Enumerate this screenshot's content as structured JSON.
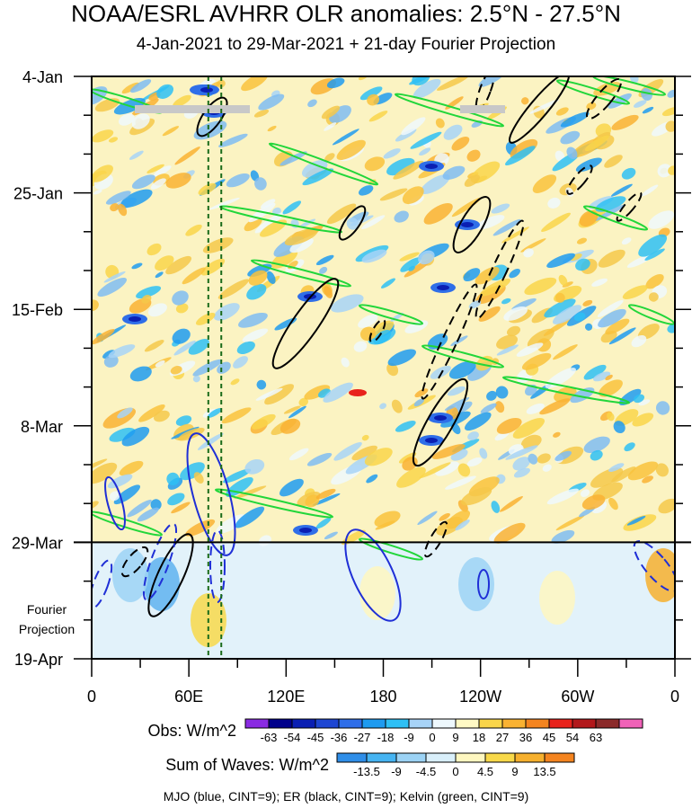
{
  "chart_data": {
    "type": "heatmap",
    "title": "NOAA/ESRL AVHRR OLR anomalies: 2.5°N - 27.5°N",
    "subtitle": "4-Jan-2021 to 29-Mar-2021 + 21-day Fourier Projection",
    "x_axis": {
      "ticks": [
        {
          "lon": 0,
          "label": "0"
        },
        {
          "lon": 60,
          "label": "60E"
        },
        {
          "lon": 120,
          "label": "120E"
        },
        {
          "lon": 180,
          "label": "180"
        },
        {
          "lon": 240,
          "label": "120W"
        },
        {
          "lon": 300,
          "label": "60W"
        },
        {
          "lon": 360,
          "label": "0"
        }
      ],
      "range": [
        0,
        360
      ]
    },
    "y_axis": {
      "ticks": [
        {
          "day": 0,
          "label": "4-Jan"
        },
        {
          "day": 21,
          "label": "25-Jan"
        },
        {
          "day": 42,
          "label": "15-Feb"
        },
        {
          "day": 63,
          "label": "8-Mar"
        },
        {
          "day": 84,
          "label": "29-Mar"
        },
        {
          "day": 105,
          "label": "19-Apr"
        }
      ],
      "range": [
        0,
        105
      ],
      "observation_end_day": 84
    },
    "projection_label": [
      "Fourier",
      "Projection"
    ],
    "colorbars": {
      "obs": {
        "label": "Obs: W/m^2",
        "levels": [
          "-63",
          "-54",
          "-45",
          "-36",
          "-27",
          "-18",
          "-9",
          "0",
          "9",
          "18",
          "27",
          "36",
          "45",
          "54",
          "63"
        ],
        "colors": [
          "#8a2be2",
          "#00008b",
          "#0a1fb3",
          "#1e46d2",
          "#2f6ee8",
          "#1e9bf0",
          "#2ec0f5",
          "#a7d3f7",
          "#eef8fd",
          "#fff9c4",
          "#f9d54a",
          "#f9b232",
          "#f4841f",
          "#e8221b",
          "#b2181b",
          "#8b2a2a",
          "#f062b8"
        ]
      },
      "waves": {
        "label": "Sum of Waves: W/m^2",
        "levels": [
          "-13.5",
          "-9",
          "-4.5",
          "0",
          "4.5",
          "9",
          "13.5"
        ],
        "colors": [
          "#2f8ee8",
          "#46b4f2",
          "#9cd3f5",
          "#d9effa",
          "#fef7c0",
          "#f8d94a",
          "#f6b02e",
          "#f4841f"
        ]
      }
    },
    "legend_note": "MJO (blue, CINT=9); ER (black, CINT=9); Kelvin (green, CINT=9)",
    "series": [
      {
        "name": "MJO (blue, CINT=9)",
        "color": "#1f2fd6"
      },
      {
        "name": "ER (black, CINT=9)",
        "color": "#000000"
      },
      {
        "name": "Kelvin (green, CINT=9)",
        "color": "#22d63a"
      }
    ],
    "reference_lines": {
      "lon": [
        72,
        80
      ],
      "color": "#1a6b1a"
    }
  }
}
